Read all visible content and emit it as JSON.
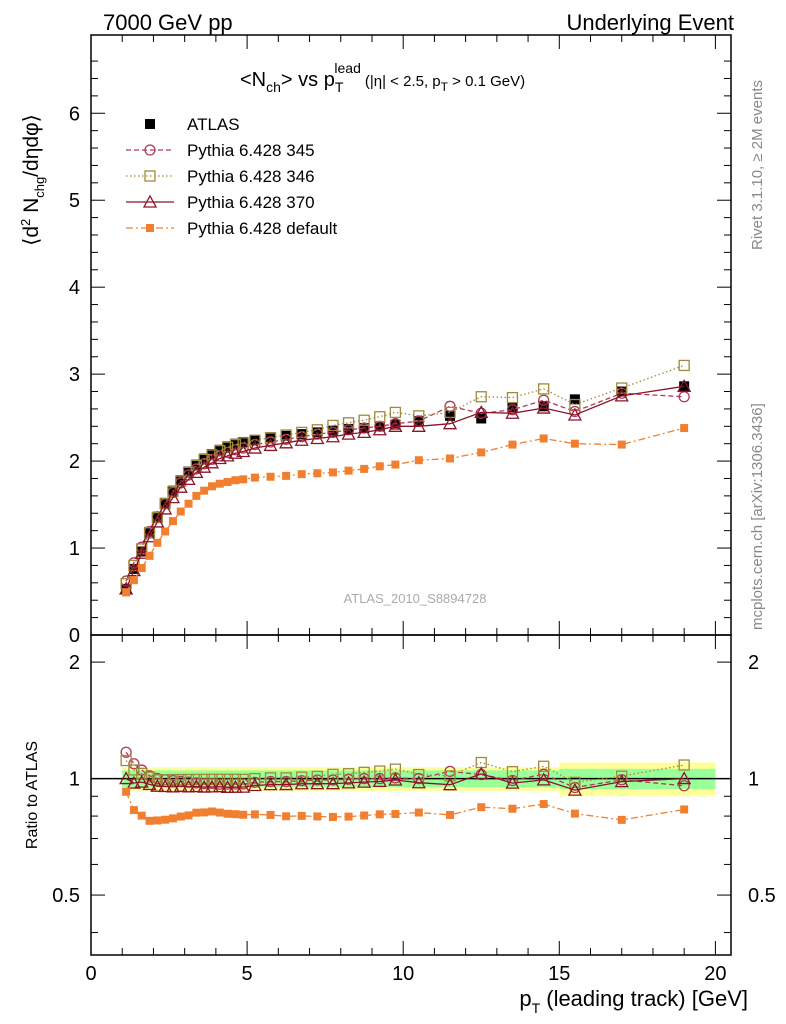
{
  "header": {
    "energy_label": "7000 GeV pp",
    "process_label": "Underlying Event"
  },
  "side_labels": {
    "rivet": "Rivet 3.1.10, ≥ 2M events",
    "mcplots": "mcplots.cern.ch [arXiv:1306.3436]"
  },
  "watermark": "ATLAS_2010_S8894728",
  "colors": {
    "atlas": "#000000",
    "p345": "#b03a58",
    "p346": "#a08a3c",
    "p370": "#8c1428",
    "pdefault": "#f08030",
    "band_yellow": "#ffff99",
    "band_green": "#99ff99"
  },
  "chart_data": [
    {
      "panel": "main",
      "type": "scatter",
      "title": "<Nch> vs pT lead (|η| < 2.5, pT > 0.1 GeV)",
      "xlabel": "pT (leading track) [GeV]",
      "ylabel": "⟨d2 Nchg/dηdφ⟩",
      "xlim": [
        0,
        20.5
      ],
      "ylim": [
        0,
        6.9
      ],
      "xticks": [
        0,
        5,
        10,
        15,
        20
      ],
      "yticks": [
        0,
        1,
        2,
        3,
        4,
        5,
        6
      ],
      "grid": false,
      "legend_position": "top-left",
      "x": [
        1.125,
        1.375,
        1.625,
        1.875,
        2.125,
        2.375,
        2.625,
        2.875,
        3.125,
        3.375,
        3.625,
        3.875,
        4.125,
        4.375,
        4.625,
        4.875,
        5.25,
        5.75,
        6.25,
        6.75,
        7.25,
        7.75,
        8.25,
        8.75,
        9.25,
        9.75,
        10.5,
        11.5,
        12.5,
        13.5,
        14.5,
        15.5,
        17.0,
        19.0
      ],
      "series": [
        {
          "name": "ATLAS",
          "marker": "filled-square",
          "values": [
            0.53,
            0.76,
            0.96,
            1.17,
            1.36,
            1.52,
            1.66,
            1.78,
            1.88,
            1.96,
            2.03,
            2.08,
            2.13,
            2.17,
            2.2,
            2.22,
            2.24,
            2.26,
            2.29,
            2.31,
            2.33,
            2.35,
            2.37,
            2.38,
            2.4,
            2.42,
            2.46,
            2.52,
            2.49,
            2.62,
            2.63,
            2.71,
            2.8,
            2.86
          ]
        },
        {
          "name": "Pythia 6.428 345",
          "marker": "open-circle",
          "line": "dashed",
          "values": [
            0.62,
            0.83,
            1.01,
            1.19,
            1.36,
            1.51,
            1.64,
            1.75,
            1.84,
            1.91,
            1.97,
            2.02,
            2.06,
            2.1,
            2.13,
            2.15,
            2.19,
            2.22,
            2.25,
            2.28,
            2.31,
            2.33,
            2.36,
            2.38,
            2.4,
            2.43,
            2.46,
            2.63,
            2.55,
            2.59,
            2.7,
            2.57,
            2.78,
            2.74
          ]
        },
        {
          "name": "Pythia 6.428 346",
          "marker": "open-square",
          "line": "dotted",
          "values": [
            0.59,
            0.8,
            0.99,
            1.18,
            1.35,
            1.51,
            1.65,
            1.77,
            1.87,
            1.95,
            2.02,
            2.07,
            2.12,
            2.16,
            2.19,
            2.21,
            2.24,
            2.27,
            2.3,
            2.33,
            2.36,
            2.41,
            2.44,
            2.47,
            2.51,
            2.56,
            2.52,
            2.56,
            2.74,
            2.73,
            2.83,
            2.65,
            2.84,
            3.1
          ]
        },
        {
          "name": "Pythia 6.428 370",
          "marker": "open-triangle",
          "line": "solid",
          "values": [
            0.53,
            0.74,
            0.94,
            1.13,
            1.3,
            1.45,
            1.58,
            1.7,
            1.79,
            1.87,
            1.93,
            1.98,
            2.03,
            2.06,
            2.09,
            2.11,
            2.15,
            2.18,
            2.21,
            2.24,
            2.26,
            2.28,
            2.31,
            2.33,
            2.36,
            2.4,
            2.4,
            2.43,
            2.56,
            2.55,
            2.61,
            2.53,
            2.75,
            2.86
          ]
        },
        {
          "name": "Pythia 6.428 default",
          "marker": "filled-small-square",
          "line": "dash-dot",
          "values": [
            0.49,
            0.63,
            0.77,
            0.91,
            1.06,
            1.19,
            1.31,
            1.42,
            1.51,
            1.6,
            1.66,
            1.71,
            1.74,
            1.76,
            1.78,
            1.79,
            1.81,
            1.82,
            1.83,
            1.85,
            1.86,
            1.87,
            1.89,
            1.91,
            1.94,
            1.96,
            2.01,
            2.03,
            2.1,
            2.19,
            2.26,
            2.2,
            2.19,
            2.38
          ]
        }
      ]
    },
    {
      "panel": "ratio",
      "type": "scatter",
      "ylabel": "Ratio to ATLAS",
      "xlabel": "pT (leading track) [GeV]",
      "xlim": [
        0,
        20.5
      ],
      "ylim": [
        0.35,
        2.35
      ],
      "log_y": true,
      "yticks": [
        0.5,
        1,
        2
      ],
      "xticks": [
        0,
        5,
        10,
        15,
        20
      ],
      "band_green_halfwidth": [
        0.05,
        0.05,
        0.05,
        0.05,
        0.05,
        0.05,
        0.05,
        0.05,
        0.05,
        0.05,
        0.05,
        0.05,
        0.05,
        0.05,
        0.05,
        0.05,
        0.05,
        0.05,
        0.05,
        0.05,
        0.05,
        0.05,
        0.05,
        0.05,
        0.05,
        0.05,
        0.05,
        0.05,
        0.05,
        0.05,
        0.05,
        0.06,
        0.06,
        0.06
      ],
      "band_yellow_halfwidth": [
        0.07,
        0.07,
        0.07,
        0.07,
        0.07,
        0.07,
        0.07,
        0.07,
        0.07,
        0.07,
        0.07,
        0.07,
        0.07,
        0.07,
        0.07,
        0.07,
        0.07,
        0.07,
        0.07,
        0.07,
        0.07,
        0.07,
        0.07,
        0.07,
        0.07,
        0.07,
        0.07,
        0.07,
        0.07,
        0.07,
        0.07,
        0.1,
        0.1,
        0.1
      ]
    }
  ]
}
